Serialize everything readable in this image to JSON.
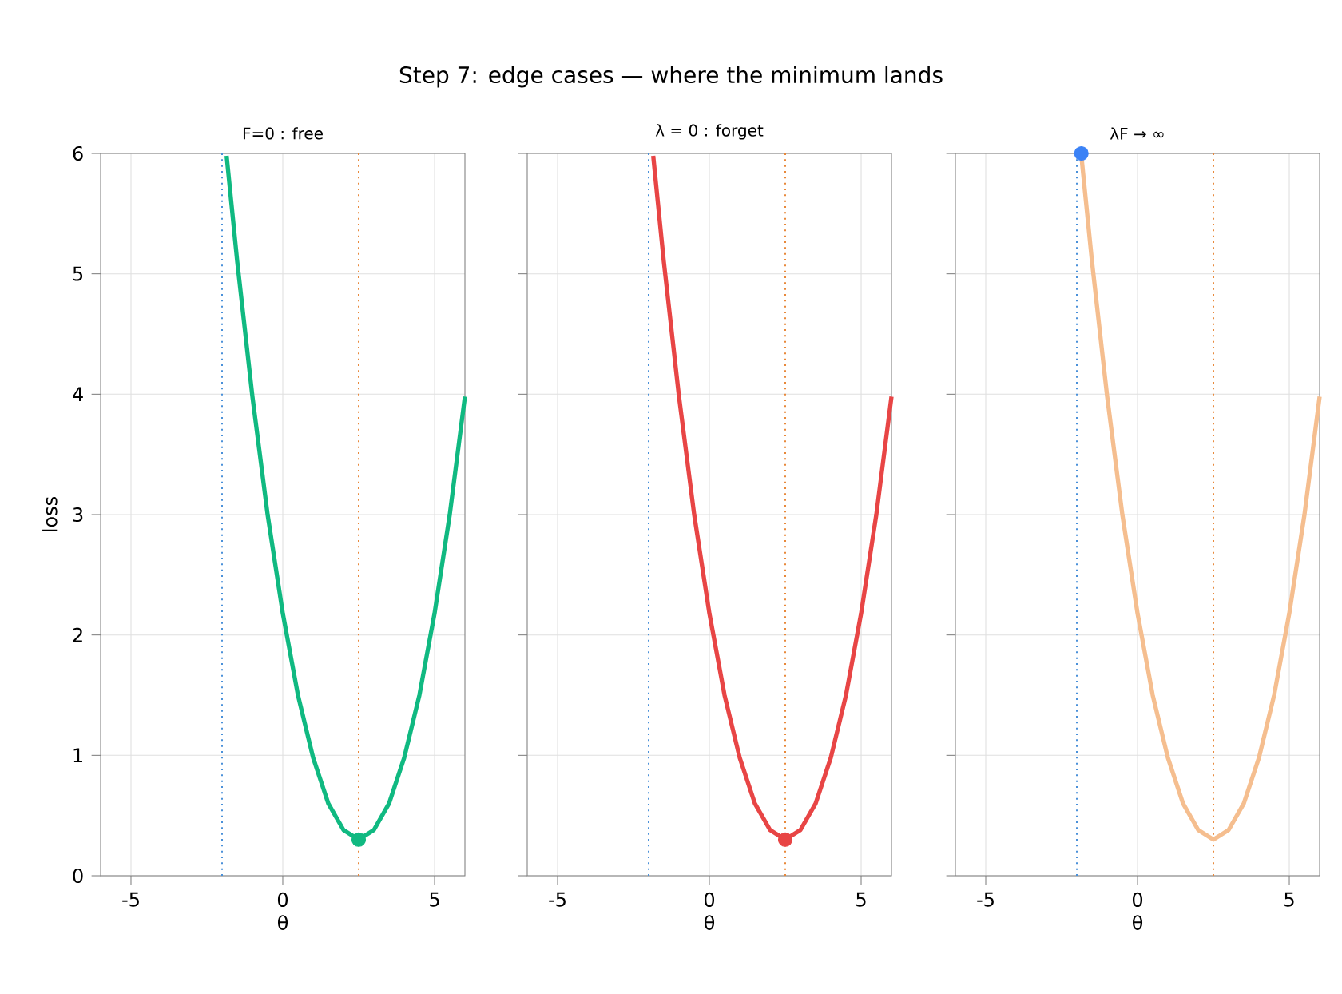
{
  "chart_data": [
    {
      "type": "other",
      "title": "Step 7: edge cases — where the minimum lands"
    },
    {
      "type": "line",
      "title": "F=0 : free",
      "xlabel": "θ",
      "ylabel": "loss",
      "xlim": [
        -6,
        6
      ],
      "xticks": [
        -5,
        0,
        5
      ],
      "ylim": [
        0,
        6
      ],
      "yticks": [
        0,
        1,
        2,
        3,
        4,
        5,
        6
      ],
      "grid": true,
      "series": [
        {
          "type": "line",
          "color": "#10b981",
          "x": [
            -1.85,
            -1.5,
            -1,
            -0.5,
            0,
            0.5,
            1,
            1.5,
            2,
            2.5,
            3,
            3.5,
            4,
            4.5,
            5,
            5.5,
            6
          ],
          "values": [
            5.98,
            5.1,
            3.98,
            3.0,
            2.18,
            1.5,
            0.98,
            0.6,
            0.38,
            0.3,
            0.38,
            0.6,
            0.98,
            1.5,
            2.18,
            3.0,
            3.98
          ]
        },
        {
          "type": "scatter",
          "color": "#10b981",
          "marker": "circle",
          "x": [
            2.5
          ],
          "values": [
            0.3
          ]
        }
      ],
      "ref_lines": [
        {
          "axis": "x",
          "value": -2,
          "color": "#4a90d9",
          "line_style": "dotted"
        },
        {
          "axis": "x",
          "value": 2.5,
          "color": "#e8883a",
          "line_style": "dotted"
        }
      ]
    },
    {
      "type": "line",
      "title": "λ = 0 : forget",
      "xlabel": "θ",
      "xlim": [
        -6,
        6
      ],
      "xticks": [
        -5,
        0,
        5
      ],
      "ylim": [
        0,
        6
      ],
      "yticks": [
        0,
        1,
        2,
        3,
        4,
        5,
        6
      ],
      "grid": true,
      "tick_labels": "x",
      "series": [
        {
          "type": "line",
          "color": "#e84545",
          "x": [
            -1.85,
            -1.5,
            -1,
            -0.5,
            0,
            0.5,
            1,
            1.5,
            2,
            2.5,
            3,
            3.5,
            4,
            4.5,
            5,
            5.5,
            6
          ],
          "values": [
            5.98,
            5.1,
            3.98,
            3.0,
            2.18,
            1.5,
            0.98,
            0.6,
            0.38,
            0.3,
            0.38,
            0.6,
            0.98,
            1.5,
            2.18,
            3.0,
            3.98
          ]
        },
        {
          "type": "scatter",
          "color": "#e84545",
          "marker": "circle",
          "x": [
            2.5
          ],
          "values": [
            0.3
          ]
        }
      ],
      "ref_lines": [
        {
          "axis": "x",
          "value": -2,
          "color": "#4a90d9",
          "line_style": "dotted"
        },
        {
          "axis": "x",
          "value": 2.5,
          "color": "#e8883a",
          "line_style": "dotted"
        }
      ]
    },
    {
      "type": "line",
      "title": "λF → ∞",
      "xlabel": "θ",
      "xlim": [
        -6,
        6
      ],
      "xticks": [
        -5,
        0,
        5
      ],
      "ylim": [
        0,
        6
      ],
      "yticks": [
        0,
        1,
        2,
        3,
        4,
        5,
        6
      ],
      "grid": true,
      "tick_labels": "x",
      "series": [
        {
          "type": "line",
          "color": "#f5be8f",
          "x": [
            -1.85,
            -1.5,
            -1,
            -0.5,
            0,
            0.5,
            1,
            1.5,
            2,
            2.5,
            3,
            3.5,
            4,
            4.5,
            5,
            5.5,
            6
          ],
          "values": [
            5.98,
            5.1,
            3.98,
            3.0,
            2.18,
            1.5,
            0.98,
            0.6,
            0.38,
            0.3,
            0.38,
            0.6,
            0.98,
            1.5,
            2.18,
            3.0,
            3.98
          ]
        },
        {
          "type": "scatter",
          "color": "#3b82f6",
          "marker": "circle",
          "x": [
            -1.85
          ],
          "values": [
            6
          ]
        }
      ],
      "ref_lines": [
        {
          "axis": "x",
          "value": -2,
          "color": "#4a90d9",
          "line_style": "dotted"
        },
        {
          "axis": "x",
          "value": 2.5,
          "color": "#e8883a",
          "line_style": "dotted"
        }
      ]
    }
  ]
}
